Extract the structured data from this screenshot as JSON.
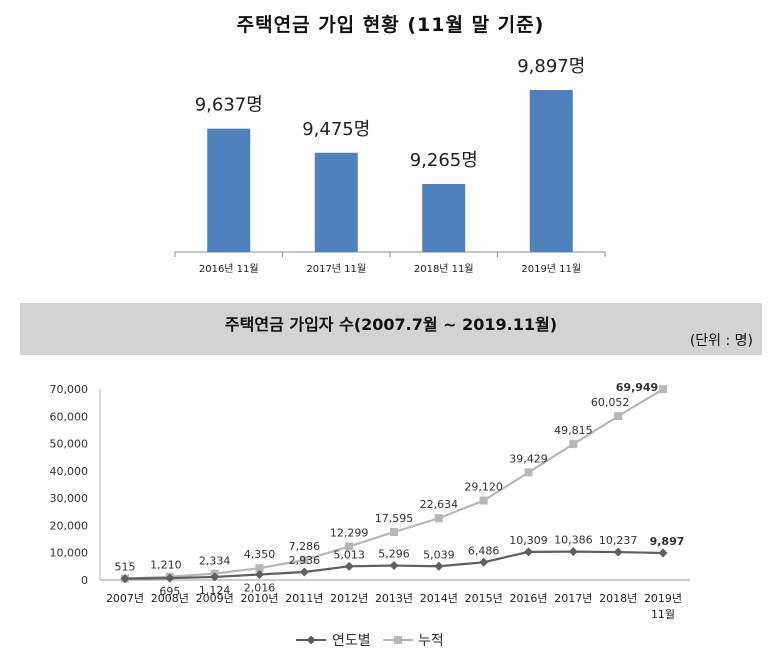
{
  "chart_data": [
    {
      "type": "bar",
      "title": "주택연금 가입 현황 (11월 말 기준)",
      "categories": [
        "2016년 11월",
        "2017년 11월",
        "2018년 11월",
        "2019년 11월"
      ],
      "values": [
        9637,
        9475,
        9265,
        9897
      ],
      "value_labels": [
        "9,637명",
        "9,475명",
        "9,265명",
        "9,897명"
      ],
      "color": "#4f81bd"
    },
    {
      "type": "line",
      "title": "주택연금 가입자 수(2007.7월 ~ 2019.11월)",
      "unit": "(단위 : 명)",
      "categories": [
        "2007년",
        "2008년",
        "2009년",
        "2010년",
        "2011년",
        "2012년",
        "2013년",
        "2014년",
        "2015년",
        "2016년",
        "2017년",
        "2018년",
        "2019년"
      ],
      "last_category_sub": "11월",
      "ylim": [
        0,
        70000
      ],
      "yticks": [
        "0",
        "10,000",
        "20,000",
        "30,000",
        "40,000",
        "50,000",
        "60,000",
        "70,000"
      ],
      "series": [
        {
          "name": "연도별",
          "values": [
            515,
            695,
            1124,
            2016,
            2936,
            5013,
            5296,
            5039,
            6486,
            10309,
            10386,
            10237,
            9897
          ],
          "labels": [
            "515",
            "695",
            "1,124",
            "2,016",
            "2,936",
            "5,013",
            "5,296",
            "5,039",
            "6,486",
            "10,309",
            "10,386",
            "10,237",
            "9,897"
          ],
          "color": "#5f5f5f"
        },
        {
          "name": "누적",
          "values": [
            515,
            1210,
            2334,
            4350,
            7286,
            12299,
            17595,
            22634,
            29120,
            39429,
            49815,
            60052,
            69949
          ],
          "labels": [
            "",
            "1,210",
            "2,334",
            "4,350",
            "7,286",
            "12,299",
            "17,595",
            "22,634",
            "29,120",
            "39,429",
            "49,815",
            "60,052",
            "69,949"
          ],
          "color": "#b7b7b7"
        }
      ]
    }
  ]
}
